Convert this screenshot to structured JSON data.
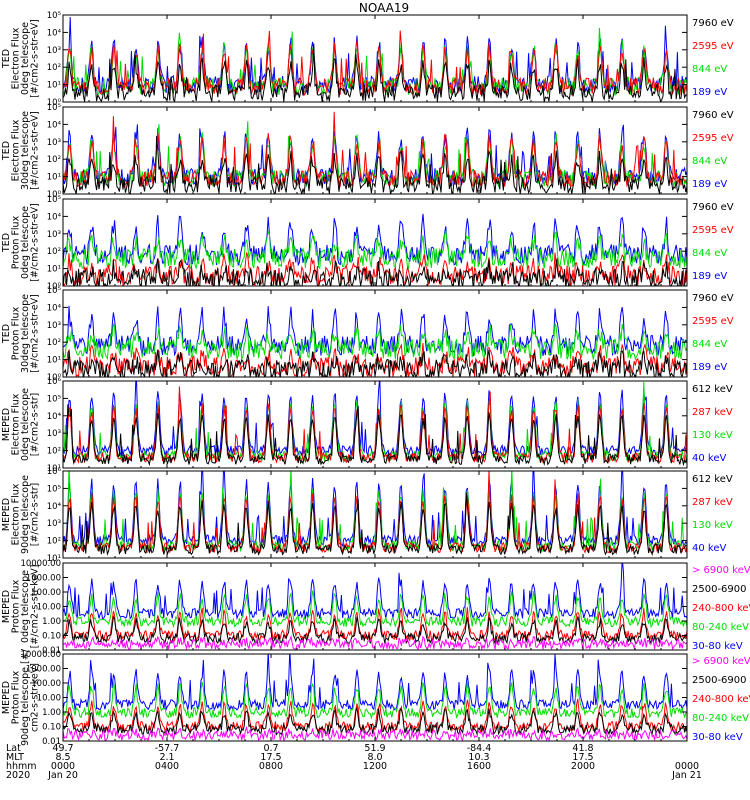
{
  "chart_data": {
    "type": "line",
    "title": "NOAA19",
    "x_range_hours": [
      0,
      24
    ],
    "x_ticks_hours": [
      0,
      4,
      8,
      12,
      16,
      20,
      24
    ],
    "ephemeris": {
      "row_labels": [
        "Lat",
        "MLT",
        "hhmm",
        "2020"
      ],
      "columns": [
        {
          "hour": 0,
          "lat": "49.7",
          "mlt": "8.5",
          "hhmm": "0000",
          "date": "Jan 20"
        },
        {
          "hour": 4,
          "lat": "-57.7",
          "mlt": "2.1",
          "hhmm": "0400",
          "date": ""
        },
        {
          "hour": 8,
          "lat": "0.7",
          "mlt": "17.5",
          "hhmm": "0800",
          "date": ""
        },
        {
          "hour": 12,
          "lat": "51.9",
          "mlt": "8.0",
          "hhmm": "1200",
          "date": ""
        },
        {
          "hour": 16,
          "lat": "-84.4",
          "mlt": "10.3",
          "hhmm": "1600",
          "date": ""
        },
        {
          "hour": 20,
          "lat": "41.8",
          "mlt": "17.5",
          "hhmm": "2000",
          "date": ""
        },
        {
          "hour": 24,
          "lat": "",
          "mlt": "",
          "hhmm": "0000",
          "date": "Jan 21"
        }
      ]
    },
    "panels": [
      {
        "ylabel": [
          "TED",
          "Electron Flux",
          "0deg telescope",
          "[#/cm2-s-str-eV]"
        ],
        "scale": "log",
        "ylim_exp": [
          0,
          5
        ],
        "yticks": [
          "10⁰",
          "10¹",
          "10²",
          "10³",
          "10⁴",
          "10⁵"
        ],
        "series": [
          {
            "name": "7960 eV",
            "color": "#000000"
          },
          {
            "name": "2595 eV",
            "color": "#ff0000"
          },
          {
            "name": "844 eV",
            "color": "#00dd00"
          },
          {
            "name": "189 eV",
            "color": "#0000ff"
          }
        ]
      },
      {
        "ylabel": [
          "TED",
          "Electron Flux",
          "30deg telescope",
          "[#/cm2-s-str-eV]"
        ],
        "scale": "log",
        "ylim_exp": [
          0,
          5
        ],
        "yticks": [
          "10⁰",
          "10¹",
          "10²",
          "10³",
          "10⁴",
          "10⁵"
        ],
        "series": [
          {
            "name": "7960 eV",
            "color": "#000000"
          },
          {
            "name": "2595 eV",
            "color": "#ff0000"
          },
          {
            "name": "844 eV",
            "color": "#00dd00"
          },
          {
            "name": "189 eV",
            "color": "#0000ff"
          }
        ]
      },
      {
        "ylabel": [
          "TED",
          "Proton Flux",
          "0deg telescope",
          "[#/cm2-s-str-eV]"
        ],
        "scale": "log",
        "ylim_exp": [
          0,
          5
        ],
        "yticks": [
          "10⁰",
          "10¹",
          "10²",
          "10³",
          "10⁴",
          "10⁵"
        ],
        "series": [
          {
            "name": "7960 eV",
            "color": "#000000"
          },
          {
            "name": "2595 eV",
            "color": "#ff0000"
          },
          {
            "name": "844 eV",
            "color": "#00dd00"
          },
          {
            "name": "189 eV",
            "color": "#0000ff"
          }
        ]
      },
      {
        "ylabel": [
          "TED",
          "Proton Flux",
          "30deg telescope",
          "[#/cm2-s-str-eV]"
        ],
        "scale": "log",
        "ylim_exp": [
          0,
          5
        ],
        "yticks": [
          "10⁰",
          "10¹",
          "10²",
          "10³",
          "10⁴",
          "10⁵"
        ],
        "series": [
          {
            "name": "7960 eV",
            "color": "#000000"
          },
          {
            "name": "2595 eV",
            "color": "#ff0000"
          },
          {
            "name": "844 eV",
            "color": "#00dd00"
          },
          {
            "name": "189 eV",
            "color": "#0000ff"
          }
        ]
      },
      {
        "ylabel": [
          "MEPED",
          "Electron Flux",
          "0deg telescope",
          "[#/cm2-s-str]"
        ],
        "scale": "log",
        "ylim_exp": [
          1,
          6
        ],
        "yticks": [
          "10¹",
          "10²",
          "10³",
          "10⁴",
          "10⁵",
          "10⁶"
        ],
        "series": [
          {
            "name": "612 keV",
            "color": "#000000"
          },
          {
            "name": "287 keV",
            "color": "#ff0000"
          },
          {
            "name": "130 keV",
            "color": "#00dd00"
          },
          {
            "name": "40 keV",
            "color": "#0000ff"
          }
        ]
      },
      {
        "ylabel": [
          "MEPED",
          "Electron Flux",
          "90deg telescope",
          "[#/cm2-s-str]"
        ],
        "scale": "log",
        "ylim_exp": [
          1,
          6
        ],
        "yticks": [
          "10¹",
          "10²",
          "10³",
          "10⁴",
          "10⁵",
          "10⁶"
        ],
        "series": [
          {
            "name": "612 keV",
            "color": "#000000"
          },
          {
            "name": "287 keV",
            "color": "#ff0000"
          },
          {
            "name": "130 keV",
            "color": "#00dd00"
          },
          {
            "name": "40 keV",
            "color": "#0000ff"
          }
        ]
      },
      {
        "ylabel": [
          "MEPED",
          "Proton Flux",
          "0deg telescope",
          "[#/cm2-s-str-keV]"
        ],
        "scale": "log",
        "ylim_exp": [
          -2,
          4
        ],
        "yticks": [
          "0.01",
          "0.10",
          "1.00",
          "10.00",
          "100.00",
          "1000.00",
          "10000.00"
        ],
        "series": [
          {
            "name": "> 6900 keV",
            "color": "#ff00ff"
          },
          {
            "name": "2500-6900",
            "color": "#000000"
          },
          {
            "name": "240-800 keV",
            "color": "#ff0000"
          },
          {
            "name": "80-240 keV",
            "color": "#00dd00"
          },
          {
            "name": "30-80 keV",
            "color": "#0000ff"
          }
        ]
      },
      {
        "ylabel": [
          "MEPED",
          "Proton Flux",
          "90deg telescope [#/",
          "cm2-s-str-keV]"
        ],
        "scale": "log",
        "ylim_exp": [
          -2,
          4
        ],
        "yticks": [
          "0.01",
          "0.10",
          "1.00",
          "10.00",
          "100.00",
          "1000.00",
          "10000.00"
        ],
        "series": [
          {
            "name": "> 6900 keV",
            "color": "#ff00ff"
          },
          {
            "name": "2500-6900",
            "color": "#000000"
          },
          {
            "name": "240-800 keV",
            "color": "#ff0000"
          },
          {
            "name": "80-240 keV",
            "color": "#00dd00"
          },
          {
            "name": "30-80 keV",
            "color": "#0000ff"
          }
        ]
      }
    ]
  }
}
